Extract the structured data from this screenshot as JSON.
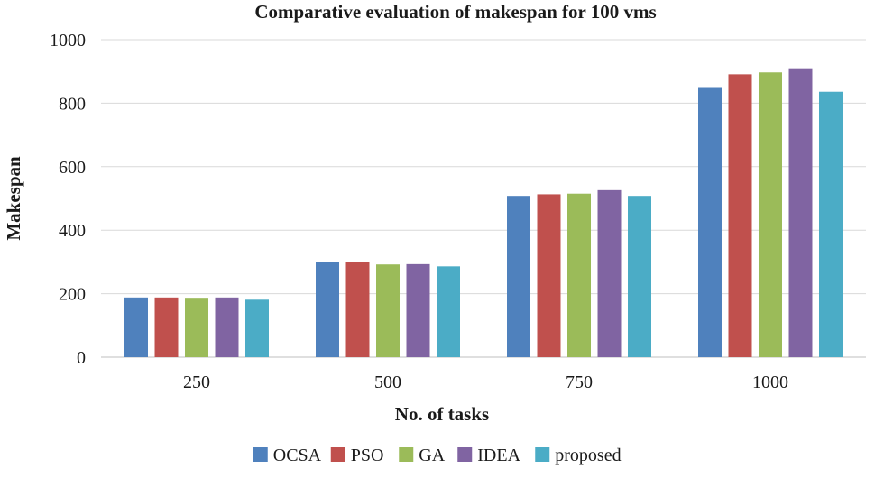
{
  "chart_data": {
    "type": "bar",
    "title": "Comparative evaluation of makespan for 100 vms",
    "xlabel": "No. of tasks",
    "ylabel": "Makespan",
    "categories": [
      "250",
      "500",
      "750",
      "1000"
    ],
    "ylim": [
      0,
      1000
    ],
    "yticks": [
      0,
      200,
      400,
      600,
      800,
      1000
    ],
    "grid": true,
    "legend_position": "bottom",
    "series": [
      {
        "name": "OCSA",
        "color": "#4f81bd",
        "values": [
          188,
          300,
          508,
          848
        ]
      },
      {
        "name": "PSO",
        "color": "#c0504d",
        "values": [
          188,
          299,
          513,
          891
        ]
      },
      {
        "name": "GA",
        "color": "#9bbb59",
        "values": [
          187,
          292,
          515,
          897
        ]
      },
      {
        "name": "IDEA",
        "color": "#8064a2",
        "values": [
          188,
          293,
          526,
          910
        ]
      },
      {
        "name": "proposed",
        "color": "#4bacc6",
        "values": [
          181,
          286,
          508,
          836
        ]
      }
    ]
  }
}
